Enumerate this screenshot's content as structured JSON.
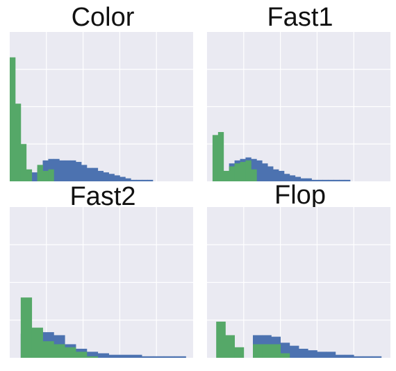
{
  "figure": {
    "colors": {
      "background": "#eaeaf2",
      "grid": "#ffffff",
      "series_blue": "#4c72b0",
      "series_green": "#55a868"
    }
  },
  "chart_data": [
    {
      "type": "histogram",
      "title": "Color",
      "xlabel": "",
      "ylabel": "",
      "xlim": [
        0,
        1
      ],
      "ylim": [
        0,
        1
      ],
      "grid": true,
      "bin_edges": [
        0.0,
        0.03,
        0.06,
        0.09,
        0.12,
        0.15,
        0.18,
        0.21,
        0.24,
        0.27,
        0.3,
        0.33,
        0.36,
        0.39,
        0.42,
        0.45,
        0.48,
        0.51,
        0.54,
        0.57,
        0.6,
        0.63,
        0.66,
        0.69,
        0.72,
        0.75,
        0.78,
        0.81,
        0.84,
        0.87,
        0.9,
        0.93,
        0.96
      ],
      "series": [
        {
          "color": "#4c72b0",
          "counts": [
            0.0,
            0.0,
            0.04,
            0.04,
            0.06,
            0.09,
            0.14,
            0.15,
            0.15,
            0.14,
            0.14,
            0.14,
            0.13,
            0.11,
            0.09,
            0.09,
            0.07,
            0.06,
            0.05,
            0.04,
            0.03,
            0.02,
            0.01,
            0.01,
            0.01,
            0.01,
            0.0,
            0.0,
            0.0,
            0.0,
            0.0,
            0.0
          ]
        },
        {
          "color": "#55a868",
          "counts": [
            0.83,
            0.52,
            0.25,
            0.08,
            0.0,
            0.11,
            0.07,
            0.08,
            0.0,
            0.0,
            0.0,
            0.0,
            0.0,
            0.0,
            0.0,
            0.0,
            0.0,
            0.0,
            0.0,
            0.0,
            0.0,
            0.0,
            0.0,
            0.0,
            0.0,
            0.0,
            0.0,
            0.0,
            0.0,
            0.0,
            0.0,
            0.0
          ]
        }
      ]
    },
    {
      "type": "histogram",
      "title": "Fast1",
      "xlabel": "",
      "ylabel": "",
      "xlim": [
        0,
        1
      ],
      "ylim": [
        0,
        1
      ],
      "grid": true,
      "bin_edges": [
        0.0,
        0.03,
        0.06,
        0.09,
        0.12,
        0.15,
        0.18,
        0.21,
        0.24,
        0.27,
        0.3,
        0.33,
        0.36,
        0.39,
        0.42,
        0.45,
        0.48,
        0.51,
        0.54,
        0.57,
        0.6,
        0.63,
        0.66,
        0.69,
        0.72,
        0.75,
        0.78,
        0.81,
        0.84,
        0.87,
        0.9,
        0.93,
        0.96
      ],
      "series": [
        {
          "color": "#4c72b0",
          "counts": [
            0.0,
            0.0,
            0.0,
            0.04,
            0.12,
            0.14,
            0.15,
            0.16,
            0.15,
            0.14,
            0.12,
            0.1,
            0.08,
            0.07,
            0.05,
            0.04,
            0.03,
            0.02,
            0.02,
            0.01,
            0.01,
            0.01,
            0.01,
            0.01,
            0.01,
            0.01,
            0.0,
            0.0,
            0.0,
            0.0,
            0.0,
            0.0
          ]
        },
        {
          "color": "#55a868",
          "counts": [
            0.0,
            0.31,
            0.33,
            0.07,
            0.1,
            0.12,
            0.13,
            0.14,
            0.08,
            0.0,
            0.0,
            0.0,
            0.0,
            0.0,
            0.0,
            0.0,
            0.0,
            0.0,
            0.0,
            0.0,
            0.0,
            0.0,
            0.0,
            0.0,
            0.0,
            0.0,
            0.0,
            0.0,
            0.0,
            0.0,
            0.0,
            0.0
          ]
        }
      ]
    },
    {
      "type": "histogram",
      "title": "Fast2",
      "xlabel": "",
      "ylabel": "",
      "xlim": [
        0,
        1
      ],
      "ylim": [
        0,
        1
      ],
      "grid": true,
      "bin_edges": [
        0.0,
        0.06,
        0.12,
        0.18,
        0.24,
        0.3,
        0.36,
        0.42,
        0.48,
        0.54,
        0.6,
        0.66,
        0.72,
        0.78,
        0.84,
        0.9,
        0.96
      ],
      "series": [
        {
          "color": "#4c72b0",
          "counts": [
            0.0,
            0.16,
            0.18,
            0.17,
            0.15,
            0.09,
            0.06,
            0.04,
            0.03,
            0.02,
            0.02,
            0.02,
            0.01,
            0.01,
            0.01,
            0.01
          ]
        },
        {
          "color": "#55a868",
          "counts": [
            0.0,
            0.4,
            0.2,
            0.11,
            0.09,
            0.07,
            0.04,
            0.01,
            0.0,
            0.0,
            0.0,
            0.0,
            0.0,
            0.0,
            0.0,
            0.0
          ]
        }
      ]
    },
    {
      "type": "histogram",
      "title": "Flop",
      "xlabel": "",
      "ylabel": "",
      "xlim": [
        0,
        1
      ],
      "ylim": [
        0,
        1
      ],
      "grid": true,
      "bin_edges": [
        0.0,
        0.05,
        0.1,
        0.15,
        0.2,
        0.25,
        0.3,
        0.35,
        0.4,
        0.45,
        0.5,
        0.55,
        0.6,
        0.65,
        0.7,
        0.75,
        0.8,
        0.85,
        0.9,
        0.95
      ],
      "series": [
        {
          "color": "#4c72b0",
          "counts": [
            0.0,
            0.0,
            0.0,
            0.0,
            0.0,
            0.15,
            0.15,
            0.14,
            0.1,
            0.08,
            0.06,
            0.05,
            0.04,
            0.04,
            0.02,
            0.02,
            0.01,
            0.01,
            0.01
          ]
        },
        {
          "color": "#55a868",
          "counts": [
            0.0,
            0.24,
            0.15,
            0.07,
            0.0,
            0.09,
            0.09,
            0.09,
            0.03,
            0.0,
            0.0,
            0.0,
            0.0,
            0.0,
            0.0,
            0.0,
            0.0,
            0.0,
            0.0
          ]
        }
      ]
    }
  ]
}
